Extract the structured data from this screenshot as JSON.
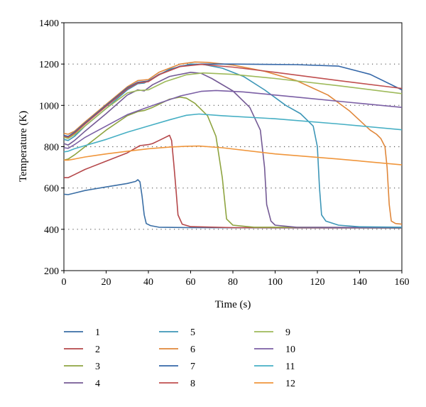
{
  "chart_data": {
    "type": "line",
    "xlabel": "Time (s)",
    "ylabel": "Temperature (K)",
    "xlim": [
      0,
      160
    ],
    "ylim": [
      200,
      1400
    ],
    "xticks": [
      0,
      20,
      40,
      60,
      80,
      100,
      120,
      140,
      160
    ],
    "yticks": [
      200,
      400,
      600,
      800,
      1000,
      1200,
      1400
    ],
    "grid": "horizontal dotted at 400, 600, 800, 1000, 1200",
    "legend_position": "bottom",
    "series": [
      {
        "name": "1",
        "color": "#3a6ea5",
        "points": [
          [
            0,
            570
          ],
          [
            2,
            568
          ],
          [
            5,
            575
          ],
          [
            10,
            588
          ],
          [
            20,
            605
          ],
          [
            30,
            622
          ],
          [
            34,
            632
          ],
          [
            35,
            640
          ],
          [
            36,
            630
          ],
          [
            37,
            560
          ],
          [
            38,
            470
          ],
          [
            39,
            428
          ],
          [
            41,
            418
          ],
          [
            45,
            410
          ],
          [
            60,
            408
          ],
          [
            100,
            407
          ],
          [
            160,
            406
          ]
        ]
      },
      {
        "name": "2",
        "color": "#b5474a",
        "points": [
          [
            0,
            650
          ],
          [
            2,
            650
          ],
          [
            5,
            665
          ],
          [
            10,
            690
          ],
          [
            20,
            730
          ],
          [
            30,
            770
          ],
          [
            36,
            805
          ],
          [
            40,
            810
          ],
          [
            42,
            815
          ],
          [
            45,
            830
          ],
          [
            50,
            855
          ],
          [
            51,
            830
          ],
          [
            52,
            720
          ],
          [
            53,
            600
          ],
          [
            54,
            470
          ],
          [
            56,
            425
          ],
          [
            60,
            413
          ],
          [
            80,
            408
          ],
          [
            160,
            407
          ]
        ]
      },
      {
        "name": "3",
        "color": "#8ea440",
        "points": [
          [
            0,
            735
          ],
          [
            2,
            740
          ],
          [
            5,
            760
          ],
          [
            10,
            800
          ],
          [
            20,
            880
          ],
          [
            30,
            950
          ],
          [
            35,
            970
          ],
          [
            38,
            975
          ],
          [
            42,
            990
          ],
          [
            50,
            1030
          ],
          [
            55,
            1040
          ],
          [
            58,
            1035
          ],
          [
            62,
            1010
          ],
          [
            68,
            950
          ],
          [
            72,
            850
          ],
          [
            75,
            650
          ],
          [
            77,
            450
          ],
          [
            80,
            420
          ],
          [
            90,
            410
          ],
          [
            160,
            408
          ]
        ]
      },
      {
        "name": "4",
        "color": "#745a95",
        "points": [
          [
            0,
            815
          ],
          [
            2,
            808
          ],
          [
            5,
            830
          ],
          [
            10,
            875
          ],
          [
            20,
            960
          ],
          [
            30,
            1050
          ],
          [
            35,
            1075
          ],
          [
            38,
            1070
          ],
          [
            42,
            1100
          ],
          [
            50,
            1140
          ],
          [
            60,
            1160
          ],
          [
            65,
            1155
          ],
          [
            70,
            1130
          ],
          [
            80,
            1070
          ],
          [
            88,
            990
          ],
          [
            93,
            880
          ],
          [
            95,
            700
          ],
          [
            96,
            520
          ],
          [
            98,
            440
          ],
          [
            100,
            420
          ],
          [
            110,
            410
          ],
          [
            160,
            408
          ]
        ]
      },
      {
        "name": "5",
        "color": "#3d96b7",
        "points": [
          [
            0,
            835
          ],
          [
            2,
            830
          ],
          [
            5,
            850
          ],
          [
            10,
            900
          ],
          [
            20,
            985
          ],
          [
            30,
            1075
          ],
          [
            35,
            1105
          ],
          [
            38,
            1108
          ],
          [
            42,
            1130
          ],
          [
            50,
            1175
          ],
          [
            60,
            1200
          ],
          [
            66,
            1198
          ],
          [
            75,
            1180
          ],
          [
            85,
            1140
          ],
          [
            95,
            1075
          ],
          [
            105,
            1000
          ],
          [
            112,
            960
          ],
          [
            118,
            900
          ],
          [
            120,
            800
          ],
          [
            121,
            600
          ],
          [
            122,
            470
          ],
          [
            124,
            440
          ],
          [
            130,
            420
          ],
          [
            140,
            412
          ],
          [
            160,
            410
          ]
        ]
      },
      {
        "name": "6",
        "color": "#e0873a",
        "points": [
          [
            0,
            865
          ],
          [
            2,
            860
          ],
          [
            5,
            875
          ],
          [
            10,
            920
          ],
          [
            20,
            1005
          ],
          [
            30,
            1090
          ],
          [
            35,
            1120
          ],
          [
            40,
            1125
          ],
          [
            45,
            1160
          ],
          [
            55,
            1200
          ],
          [
            62,
            1210
          ],
          [
            68,
            1208
          ],
          [
            80,
            1195
          ],
          [
            95,
            1165
          ],
          [
            110,
            1120
          ],
          [
            125,
            1050
          ],
          [
            135,
            975
          ],
          [
            145,
            880
          ],
          [
            148,
            860
          ],
          [
            150,
            840
          ],
          [
            152,
            800
          ],
          [
            153,
            700
          ],
          [
            154,
            520
          ],
          [
            155,
            440
          ],
          [
            157,
            428
          ],
          [
            160,
            425
          ]
        ]
      },
      {
        "name": "7",
        "color": "#3467a8",
        "points": [
          [
            0,
            855
          ],
          [
            2,
            850
          ],
          [
            5,
            870
          ],
          [
            10,
            915
          ],
          [
            20,
            1000
          ],
          [
            30,
            1085
          ],
          [
            35,
            1112
          ],
          [
            40,
            1118
          ],
          [
            45,
            1150
          ],
          [
            55,
            1190
          ],
          [
            65,
            1200
          ],
          [
            80,
            1200
          ],
          [
            110,
            1197
          ],
          [
            130,
            1190
          ],
          [
            145,
            1150
          ],
          [
            160,
            1075
          ]
        ]
      },
      {
        "name": "8",
        "color": "#c04f4f",
        "points": [
          [
            0,
            850
          ],
          [
            2,
            845
          ],
          [
            5,
            865
          ],
          [
            10,
            910
          ],
          [
            20,
            995
          ],
          [
            30,
            1080
          ],
          [
            35,
            1108
          ],
          [
            40,
            1115
          ],
          [
            45,
            1148
          ],
          [
            55,
            1188
          ],
          [
            65,
            1198
          ],
          [
            80,
            1185
          ],
          [
            100,
            1160
          ],
          [
            130,
            1120
          ],
          [
            160,
            1082
          ]
        ]
      },
      {
        "name": "9",
        "color": "#9eba5a",
        "points": [
          [
            0,
            845
          ],
          [
            2,
            840
          ],
          [
            5,
            858
          ],
          [
            10,
            900
          ],
          [
            20,
            985
          ],
          [
            30,
            1060
          ],
          [
            35,
            1072
          ],
          [
            40,
            1075
          ],
          [
            48,
            1115
          ],
          [
            58,
            1148
          ],
          [
            66,
            1157
          ],
          [
            80,
            1150
          ],
          [
            100,
            1130
          ],
          [
            130,
            1095
          ],
          [
            160,
            1057
          ]
        ]
      },
      {
        "name": "10",
        "color": "#7b5fa5",
        "points": [
          [
            0,
            795
          ],
          [
            2,
            792
          ],
          [
            5,
            810
          ],
          [
            10,
            845
          ],
          [
            20,
            900
          ],
          [
            30,
            955
          ],
          [
            38,
            985
          ],
          [
            45,
            1010
          ],
          [
            55,
            1045
          ],
          [
            65,
            1068
          ],
          [
            72,
            1072
          ],
          [
            85,
            1065
          ],
          [
            110,
            1040
          ],
          [
            135,
            1015
          ],
          [
            160,
            990
          ]
        ]
      },
      {
        "name": "11",
        "color": "#46afc4",
        "points": [
          [
            0,
            775
          ],
          [
            2,
            778
          ],
          [
            5,
            790
          ],
          [
            10,
            805
          ],
          [
            20,
            835
          ],
          [
            30,
            870
          ],
          [
            40,
            900
          ],
          [
            50,
            930
          ],
          [
            58,
            952
          ],
          [
            64,
            958
          ],
          [
            75,
            950
          ],
          [
            100,
            935
          ],
          [
            130,
            910
          ],
          [
            160,
            882
          ]
        ]
      },
      {
        "name": "12",
        "color": "#f0963c",
        "points": [
          [
            0,
            735
          ],
          [
            2,
            735
          ],
          [
            5,
            740
          ],
          [
            10,
            750
          ],
          [
            20,
            765
          ],
          [
            30,
            778
          ],
          [
            40,
            790
          ],
          [
            50,
            798
          ],
          [
            58,
            802
          ],
          [
            64,
            803
          ],
          [
            75,
            795
          ],
          [
            100,
            765
          ],
          [
            130,
            740
          ],
          [
            160,
            712
          ]
        ]
      }
    ]
  }
}
